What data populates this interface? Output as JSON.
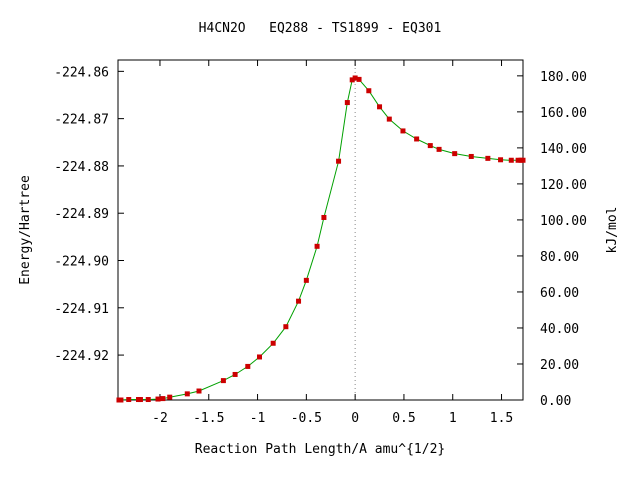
{
  "chart_data": {
    "type": "line",
    "title": "H4CN2O   EQ288 - TS1899 - EQ301",
    "xlabel": "Reaction Path Length/A amu^{1/2}",
    "ylabel": "Energy/Hartree",
    "y2label": "kJ/mol",
    "xlim": [
      -2.43,
      1.72
    ],
    "ylim": [
      -224.9295,
      -224.8576
    ],
    "y2lim": [
      0.0,
      188.8
    ],
    "x_ticks": [
      "-2",
      "-1.5",
      "-1",
      "-0.5",
      "0",
      "0.5",
      "1",
      "1.5"
    ],
    "y_ticks": [
      "-224.86",
      "-224.87",
      "-224.88",
      "-224.89",
      "-224.90",
      "-224.91",
      "-224.92"
    ],
    "y2_ticks": [
      "0.00",
      "20.00",
      "40.00",
      "60.00",
      "80.00",
      "100.00",
      "120.00",
      "140.00",
      "160.00",
      "180.00"
    ],
    "ts_x": 0.0,
    "series": [
      {
        "color": "#00a000",
        "marker_color": "#cc0000",
        "x": [
          -2.42,
          -2.4,
          -2.32,
          -2.22,
          -2.2,
          -2.12,
          -2.02,
          -1.97,
          -1.9,
          -1.72,
          -1.6,
          -1.35,
          -1.23,
          -1.1,
          -0.98,
          -0.84,
          -0.71,
          -0.58,
          -0.5,
          -0.39,
          -0.32,
          -0.17,
          -0.08,
          -0.03,
          0.0,
          0.04,
          0.14,
          0.25,
          0.35,
          0.49,
          0.63,
          0.77,
          0.86,
          1.02,
          1.19,
          1.36,
          1.49,
          1.6,
          1.67,
          1.7,
          1.72
        ],
        "y": [
          -224.9295,
          -224.9295,
          -224.9294,
          -224.9294,
          -224.9294,
          -224.9294,
          -224.9293,
          -224.9292,
          -224.9289,
          -224.9282,
          -224.9276,
          -224.9254,
          -224.9241,
          -224.9224,
          -224.9204,
          -224.9175,
          -224.914,
          -224.9086,
          -224.9042,
          -224.897,
          -224.8909,
          -224.879,
          -224.8666,
          -224.8618,
          -224.8614,
          -224.8617,
          -224.8641,
          -224.8675,
          -224.8701,
          -224.8726,
          -224.8743,
          -224.8757,
          -224.8765,
          -224.8774,
          -224.878,
          -224.8784,
          -224.8787,
          -224.8788,
          -224.8788,
          -224.8788,
          -224.8788
        ]
      }
    ]
  }
}
